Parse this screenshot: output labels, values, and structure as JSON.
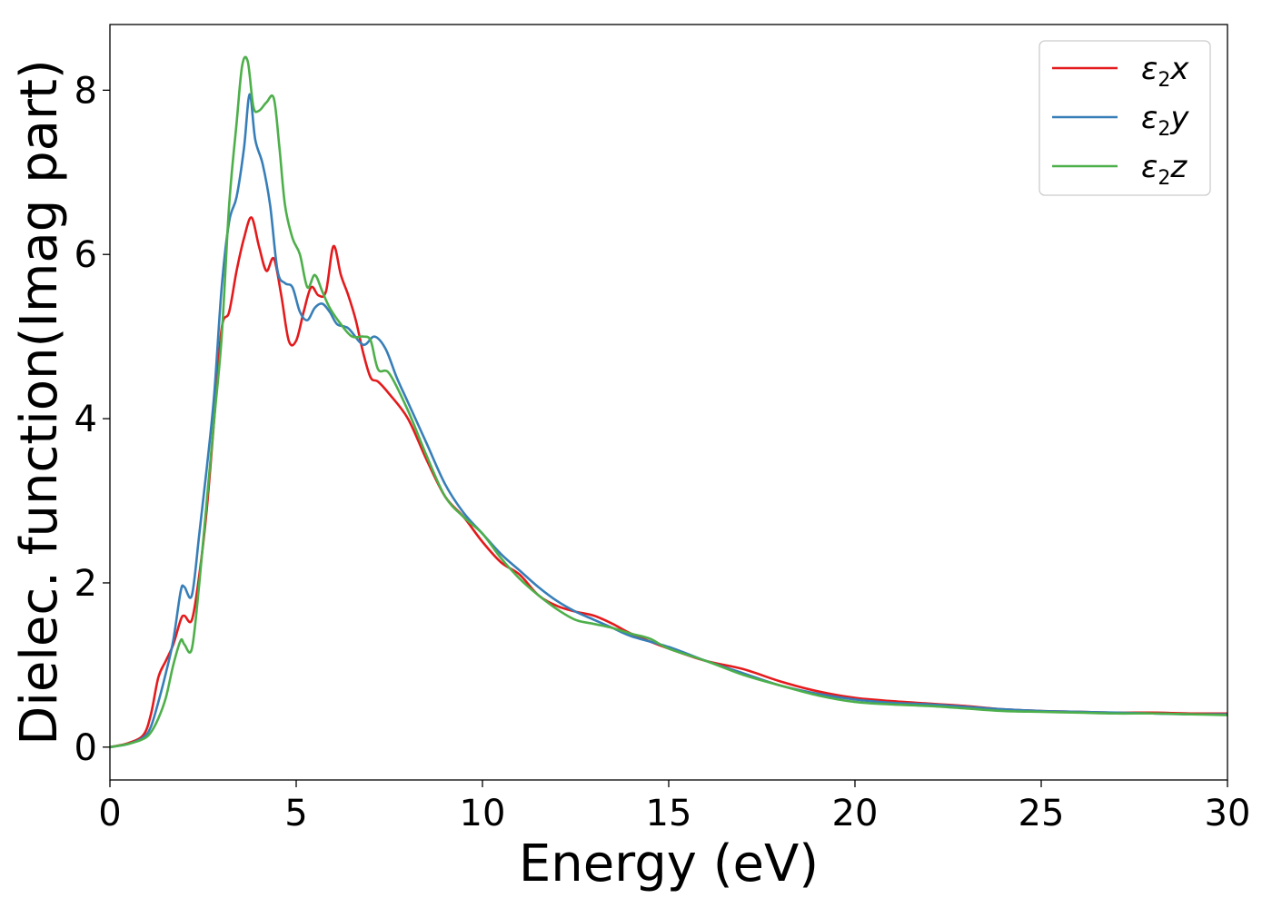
{
  "chart_data": {
    "type": "line",
    "title": "",
    "xlabel": "Energy (eV)",
    "ylabel": "Dielec. function(Imag part)",
    "xlim": [
      0,
      30
    ],
    "ylim": [
      -0.4,
      8.8
    ],
    "xticks": [
      0,
      5,
      10,
      15,
      20,
      25,
      30
    ],
    "xtick_labels": [
      "0",
      "5",
      "10",
      "15",
      "20",
      "25",
      "30"
    ],
    "yticks": [
      0,
      2,
      4,
      6,
      8
    ],
    "ytick_labels": [
      "0",
      "2",
      "4",
      "6",
      "8"
    ],
    "grid": false,
    "legend_position": "top-right",
    "series": [
      {
        "name": "ε2x",
        "legend": {
          "symbol": "ε",
          "sub": "2",
          "var": "x"
        },
        "color": "#e41a1c",
        "x": [
          0,
          0.5,
          0.9,
          1.1,
          1.3,
          1.5,
          1.7,
          1.9,
          2.0,
          2.2,
          2.4,
          2.6,
          2.8,
          3.0,
          3.2,
          3.4,
          3.6,
          3.8,
          4.0,
          4.2,
          4.4,
          4.6,
          4.8,
          5.0,
          5.2,
          5.4,
          5.6,
          5.8,
          6.0,
          6.2,
          6.4,
          6.6,
          6.8,
          7.0,
          7.2,
          7.5,
          8.0,
          8.5,
          9.0,
          9.5,
          10.0,
          10.5,
          11.0,
          11.5,
          12.0,
          12.5,
          13.0,
          13.5,
          14.0,
          15.0,
          16.0,
          17.0,
          18.0,
          19.0,
          20.0,
          21.0,
          22.0,
          23.0,
          24.0,
          25.0,
          26.0,
          27.0,
          28.0,
          29.0,
          30.0
        ],
        "y": [
          0.0,
          0.05,
          0.15,
          0.4,
          0.85,
          1.05,
          1.25,
          1.55,
          1.6,
          1.55,
          2.1,
          2.9,
          4.0,
          5.1,
          5.3,
          5.8,
          6.2,
          6.45,
          6.1,
          5.8,
          5.95,
          5.5,
          4.95,
          4.95,
          5.3,
          5.6,
          5.5,
          5.55,
          6.1,
          5.75,
          5.5,
          5.2,
          4.8,
          4.5,
          4.45,
          4.3,
          4.0,
          3.5,
          3.05,
          2.8,
          2.5,
          2.25,
          2.1,
          1.85,
          1.72,
          1.65,
          1.6,
          1.5,
          1.38,
          1.2,
          1.05,
          0.95,
          0.8,
          0.68,
          0.6,
          0.56,
          0.53,
          0.5,
          0.46,
          0.44,
          0.43,
          0.42,
          0.42,
          0.41,
          0.41
        ]
      },
      {
        "name": "ε2y",
        "legend": {
          "symbol": "ε",
          "sub": "2",
          "var": "y"
        },
        "color": "#377eb8",
        "x": [
          0,
          0.5,
          0.9,
          1.1,
          1.3,
          1.5,
          1.7,
          1.9,
          2.0,
          2.2,
          2.4,
          2.6,
          2.8,
          3.0,
          3.2,
          3.4,
          3.6,
          3.75,
          3.9,
          4.1,
          4.3,
          4.5,
          4.7,
          4.9,
          5.1,
          5.3,
          5.5,
          5.7,
          5.9,
          6.1,
          6.4,
          6.8,
          7.1,
          7.4,
          7.7,
          8.0,
          8.5,
          9.0,
          9.5,
          10.0,
          10.5,
          11.0,
          11.5,
          12.0,
          12.5,
          13.0,
          13.5,
          14.0,
          15.0,
          16.0,
          17.0,
          18.0,
          19.0,
          20.0,
          21.0,
          22.0,
          23.0,
          24.0,
          25.0,
          26.0,
          27.0,
          28.0,
          29.0,
          30.0
        ],
        "y": [
          0.0,
          0.04,
          0.12,
          0.25,
          0.55,
          0.9,
          1.3,
          1.9,
          1.95,
          1.85,
          2.6,
          3.4,
          4.3,
          5.6,
          6.4,
          6.7,
          7.3,
          7.95,
          7.4,
          7.1,
          6.6,
          5.8,
          5.65,
          5.6,
          5.3,
          5.2,
          5.35,
          5.4,
          5.3,
          5.15,
          5.1,
          4.9,
          5.0,
          4.85,
          4.5,
          4.2,
          3.7,
          3.2,
          2.85,
          2.6,
          2.35,
          2.15,
          1.95,
          1.78,
          1.65,
          1.55,
          1.45,
          1.35,
          1.22,
          1.05,
          0.9,
          0.75,
          0.65,
          0.58,
          0.54,
          0.52,
          0.49,
          0.46,
          0.44,
          0.43,
          0.42,
          0.41,
          0.4,
          0.4
        ]
      },
      {
        "name": "ε2z",
        "legend": {
          "symbol": "ε",
          "sub": "2",
          "var": "z"
        },
        "color": "#4daf4a",
        "x": [
          0,
          0.5,
          0.9,
          1.1,
          1.3,
          1.5,
          1.7,
          1.9,
          2.0,
          2.2,
          2.4,
          2.6,
          2.8,
          3.0,
          3.2,
          3.4,
          3.55,
          3.7,
          3.85,
          4.0,
          4.2,
          4.4,
          4.55,
          4.7,
          4.9,
          5.1,
          5.3,
          5.5,
          5.7,
          5.9,
          6.2,
          6.5,
          6.8,
          7.0,
          7.2,
          7.5,
          8.0,
          8.5,
          9.0,
          9.5,
          10.0,
          10.5,
          11.0,
          11.5,
          12.0,
          12.5,
          13.0,
          13.5,
          14.0,
          14.5,
          15.0,
          16.0,
          17.0,
          18.0,
          19.0,
          20.0,
          21.0,
          22.0,
          23.0,
          24.0,
          25.0,
          26.0,
          27.0,
          28.0,
          29.0,
          30.0
        ],
        "y": [
          0.0,
          0.04,
          0.1,
          0.18,
          0.35,
          0.6,
          1.0,
          1.3,
          1.25,
          1.2,
          2.0,
          3.0,
          4.0,
          5.0,
          6.6,
          7.6,
          8.3,
          8.35,
          7.8,
          7.75,
          7.85,
          7.9,
          7.3,
          6.6,
          6.2,
          6.0,
          5.6,
          5.75,
          5.55,
          5.35,
          5.15,
          5.0,
          5.0,
          4.95,
          4.6,
          4.55,
          4.1,
          3.55,
          3.05,
          2.8,
          2.6,
          2.3,
          2.05,
          1.85,
          1.68,
          1.55,
          1.5,
          1.45,
          1.38,
          1.32,
          1.2,
          1.05,
          0.88,
          0.75,
          0.63,
          0.55,
          0.52,
          0.5,
          0.47,
          0.44,
          0.43,
          0.42,
          0.41,
          0.41,
          0.4,
          0.39
        ]
      }
    ]
  }
}
